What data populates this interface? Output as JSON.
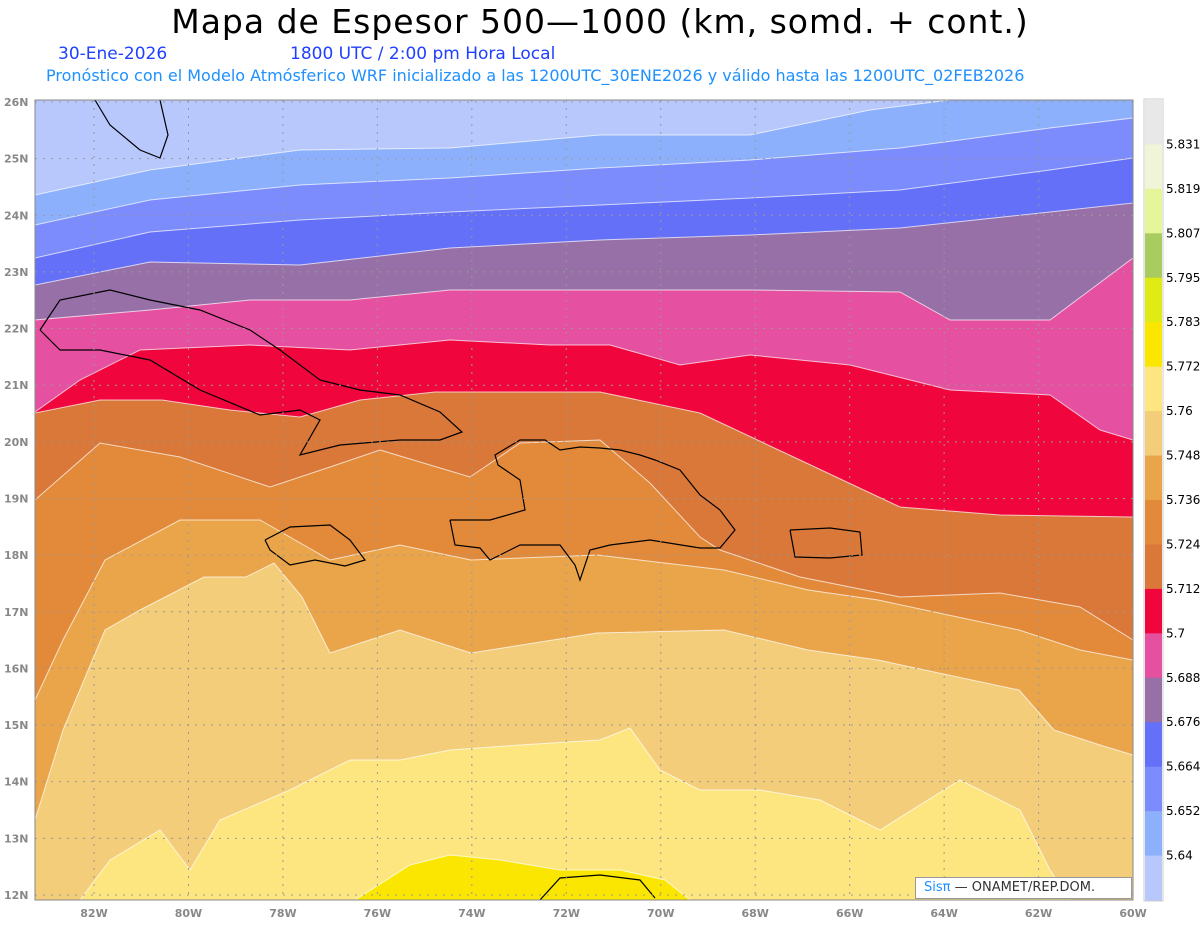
{
  "header": {
    "title": "Mapa de Espesor 500—1000 (km, somd. + cont.)",
    "date": "30-Ene-2026",
    "time": "1800 UTC / 2:00 pm Hora Local",
    "subtitle": "Pronóstico con el Modelo Atmósferico WRF inicializado a las 1200UTC_30ENE2026 y válido hasta las  1200UTC_02FEB2026"
  },
  "axes": {
    "lat_labels": [
      "26N",
      "25N",
      "24N",
      "23N",
      "22N",
      "21N",
      "20N",
      "19N",
      "18N",
      "17N",
      "16N",
      "15N",
      "14N",
      "13N",
      "12N"
    ],
    "lon_labels": [
      "82W",
      "80W",
      "78W",
      "76W",
      "74W",
      "72W",
      "70W",
      "68W",
      "66W",
      "64W",
      "62W",
      "60W"
    ]
  },
  "colorbar": {
    "labels": [
      "5.831",
      "5.819",
      "5.807",
      "5.795",
      "5.783",
      "5.772",
      "5.76",
      "5.748",
      "5.736",
      "5.724",
      "5.712",
      "5.7",
      "5.688",
      "5.676",
      "5.664",
      "5.652",
      "5.64"
    ],
    "colors": [
      "#e8e8e8",
      "#f0f5d8",
      "#e5f59a",
      "#a8cc60",
      "#e0ea14",
      "#fae600",
      "#fde680",
      "#f3cd7a",
      "#eaa54a",
      "#e38a3a",
      "#da783a",
      "#f0063c",
      "#e650a0",
      "#9870a8",
      "#6470f8",
      "#7c8cfc",
      "#8cb0fc",
      "#b8c8fc"
    ]
  },
  "credit": {
    "brand": "Sisπ",
    "text": " —  ONAMET/REP.DOM."
  }
}
